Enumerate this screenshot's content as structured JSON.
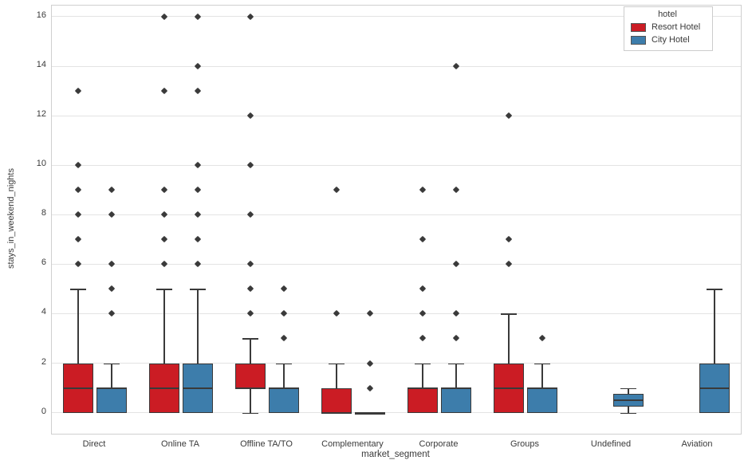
{
  "chart_data": {
    "type": "boxplot",
    "title": "",
    "xlabel": "market_segment",
    "ylabel": "stays_in_weekend_nights",
    "ylim": [
      -0.85,
      16.45
    ],
    "yticks": [
      0,
      2,
      4,
      6,
      8,
      10,
      12,
      14,
      16
    ],
    "grid": "horizontal",
    "categories": [
      "Direct",
      "Online TA",
      "Offline TA/TO",
      "Complementary",
      "Corporate",
      "Groups",
      "Undefined",
      "Aviation"
    ],
    "legend": {
      "title": "hotel",
      "position": "upper right",
      "entries": [
        {
          "label": "Resort Hotel",
          "color": "#cb1c24"
        },
        {
          "label": "City Hotel",
          "color": "#3d7dab"
        }
      ]
    },
    "series": [
      {
        "name": "Resort Hotel",
        "color": "#cb1c24",
        "boxes": [
          {
            "whislo": 0,
            "q1": 0,
            "med": 1,
            "q3": 2,
            "whishi": 5,
            "outliers": [
              6,
              7,
              8,
              9,
              10,
              13
            ]
          },
          {
            "whislo": 0,
            "q1": 0,
            "med": 1,
            "q3": 2,
            "whishi": 5,
            "outliers": [
              6,
              7,
              8,
              9,
              13,
              16
            ]
          },
          {
            "whislo": 0,
            "q1": 1,
            "med": 1,
            "q3": 2,
            "whishi": 3,
            "outliers": [
              4,
              5,
              6,
              8,
              10,
              12,
              16
            ]
          },
          {
            "whislo": 0,
            "q1": 0,
            "med": 0,
            "q3": 1,
            "whishi": 2,
            "outliers": [
              4,
              9
            ]
          },
          {
            "whislo": 0,
            "q1": 0,
            "med": 1,
            "q3": 1,
            "whishi": 2,
            "outliers": [
              3,
              4,
              5,
              7,
              9
            ]
          },
          {
            "whislo": 0,
            "q1": 0,
            "med": 1,
            "q3": 2,
            "whishi": 4,
            "outliers": [
              6,
              7,
              12
            ]
          },
          null,
          null
        ]
      },
      {
        "name": "City Hotel",
        "color": "#3d7dab",
        "boxes": [
          {
            "whislo": 0,
            "q1": 0,
            "med": 1,
            "q3": 1,
            "whishi": 2,
            "outliers": [
              4,
              5,
              6,
              8,
              9
            ]
          },
          {
            "whislo": 0,
            "q1": 0,
            "med": 1,
            "q3": 2,
            "whishi": 5,
            "outliers": [
              6,
              7,
              8,
              9,
              10,
              13,
              14,
              16
            ]
          },
          {
            "whislo": 0,
            "q1": 0,
            "med": 1,
            "q3": 1,
            "whishi": 2,
            "outliers": [
              3,
              4,
              5
            ]
          },
          {
            "whislo": 0,
            "q1": 0,
            "med": 0,
            "q3": 0,
            "whishi": 0,
            "outliers": [
              1,
              2,
              4
            ]
          },
          {
            "whislo": 0,
            "q1": 0,
            "med": 1,
            "q3": 1,
            "whishi": 2,
            "outliers": [
              3,
              4,
              6,
              9,
              14
            ]
          },
          {
            "whislo": 0,
            "q1": 0,
            "med": 1,
            "q3": 1,
            "whishi": 2,
            "outliers": [
              3
            ]
          },
          {
            "whislo": 0,
            "q1": 0.25,
            "med": 0.5,
            "q3": 0.75,
            "whishi": 1,
            "outliers": []
          },
          {
            "whislo": 0,
            "q1": 0,
            "med": 1,
            "q3": 2,
            "whishi": 5,
            "outliers": []
          }
        ]
      }
    ]
  }
}
